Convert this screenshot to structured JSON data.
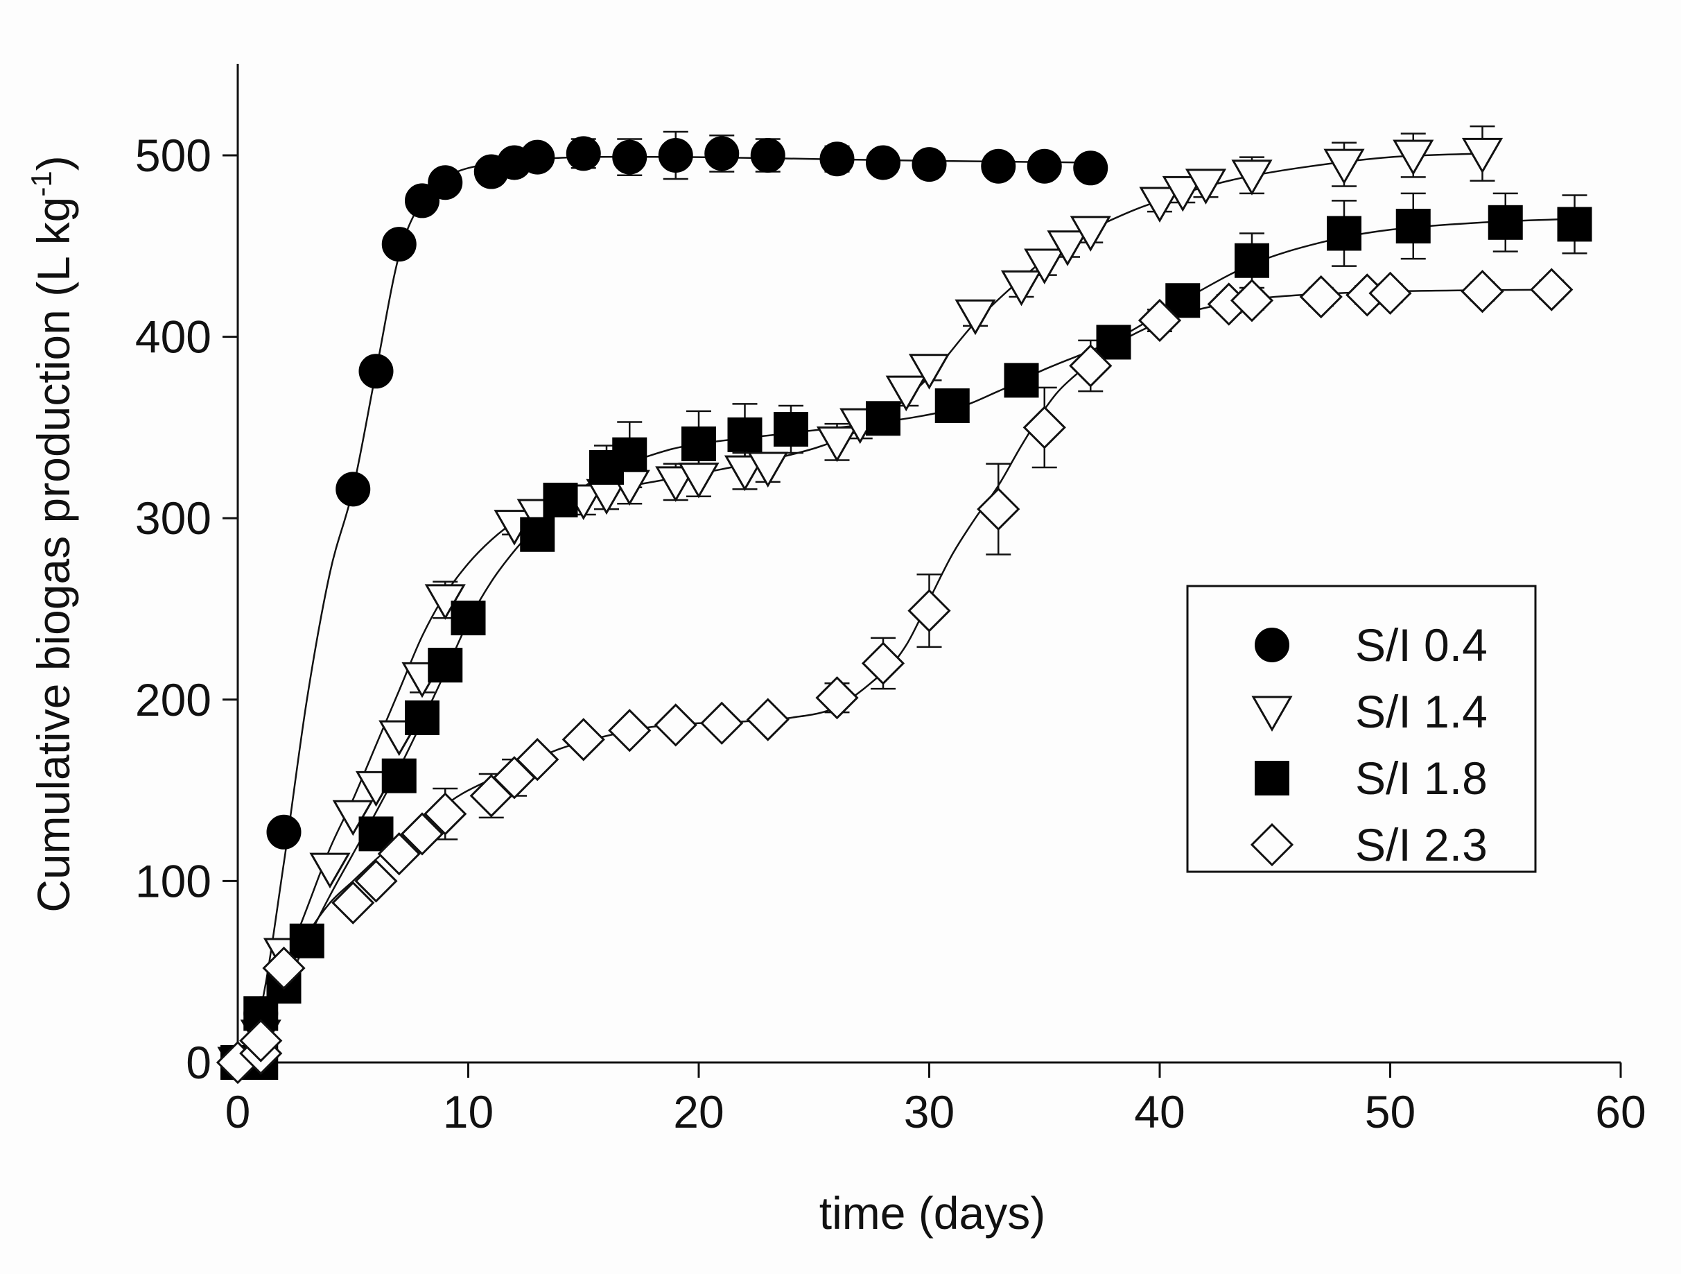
{
  "chart_data": {
    "type": "scatter",
    "title": "",
    "xlabel": "time (days)",
    "ylabel_main": "Cumulative biogas production (L kg",
    "ylabel_sup": "-1",
    "ylabel_close": ")",
    "xlim": [
      0,
      60
    ],
    "ylim": [
      0,
      550
    ],
    "xticks": [
      0,
      10,
      20,
      30,
      40,
      50,
      60
    ],
    "yticks": [
      0,
      100,
      200,
      300,
      400,
      500
    ],
    "grid": false,
    "legend_position": "center-right",
    "series": [
      {
        "name": "S/I 0.4",
        "marker": "filled-circle",
        "points": [
          {
            "x": 0,
            "y": 0,
            "err": 0
          },
          {
            "x": 1,
            "y": 27,
            "err": 0
          },
          {
            "x": 2,
            "y": 127,
            "err": 0
          },
          {
            "x": 5,
            "y": 316,
            "err": 0
          },
          {
            "x": 6,
            "y": 381,
            "err": 0
          },
          {
            "x": 7,
            "y": 451,
            "err": 0
          },
          {
            "x": 8,
            "y": 475,
            "err": 0
          },
          {
            "x": 9,
            "y": 485,
            "err": 0
          },
          {
            "x": 11,
            "y": 491,
            "err": 5
          },
          {
            "x": 12,
            "y": 496,
            "err": 5
          },
          {
            "x": 13,
            "y": 499,
            "err": 5
          },
          {
            "x": 15,
            "y": 501,
            "err": 8
          },
          {
            "x": 17,
            "y": 499,
            "err": 10
          },
          {
            "x": 19,
            "y": 500,
            "err": 13
          },
          {
            "x": 21,
            "y": 501,
            "err": 10
          },
          {
            "x": 23,
            "y": 500,
            "err": 9
          },
          {
            "x": 26,
            "y": 498,
            "err": 7
          },
          {
            "x": 28,
            "y": 496,
            "err": 6
          },
          {
            "x": 30,
            "y": 495,
            "err": 5
          },
          {
            "x": 33,
            "y": 494,
            "err": 5
          },
          {
            "x": 35,
            "y": 494,
            "err": 5
          },
          {
            "x": 37,
            "y": 493,
            "err": 6
          }
        ],
        "fit": [
          [
            0,
            0
          ],
          [
            1,
            30
          ],
          [
            2,
            110
          ],
          [
            3,
            200
          ],
          [
            4,
            270
          ],
          [
            5,
            316
          ],
          [
            6,
            381
          ],
          [
            7,
            445
          ],
          [
            8,
            475
          ],
          [
            9,
            487
          ],
          [
            10,
            493
          ],
          [
            12,
            497
          ],
          [
            15,
            499
          ],
          [
            20,
            499
          ],
          [
            25,
            498
          ],
          [
            30,
            497
          ],
          [
            37,
            496
          ]
        ]
      },
      {
        "name": "S/I 1.4",
        "marker": "open-triangle-down",
        "points": [
          {
            "x": 0,
            "y": 0,
            "err": 0
          },
          {
            "x": 1,
            "y": 15,
            "err": 0
          },
          {
            "x": 2,
            "y": 60,
            "err": 0
          },
          {
            "x": 4,
            "y": 107,
            "err": 0
          },
          {
            "x": 5,
            "y": 136,
            "err": 0
          },
          {
            "x": 6,
            "y": 152,
            "err": 0
          },
          {
            "x": 7,
            "y": 180,
            "err": 0
          },
          {
            "x": 8,
            "y": 212,
            "err": 8
          },
          {
            "x": 9,
            "y": 255,
            "err": 10
          },
          {
            "x": 12,
            "y": 296,
            "err": 5
          },
          {
            "x": 13,
            "y": 302,
            "err": 7
          },
          {
            "x": 15,
            "y": 310,
            "err": 8
          },
          {
            "x": 16,
            "y": 313,
            "err": 8
          },
          {
            "x": 17,
            "y": 318,
            "err": 10
          },
          {
            "x": 19,
            "y": 320,
            "err": 10
          },
          {
            "x": 20,
            "y": 322,
            "err": 10
          },
          {
            "x": 22,
            "y": 326,
            "err": 10
          },
          {
            "x": 23,
            "y": 328,
            "err": 8
          },
          {
            "x": 26,
            "y": 342,
            "err": 10
          },
          {
            "x": 27,
            "y": 352,
            "err": 8
          },
          {
            "x": 29,
            "y": 370,
            "err": 8
          },
          {
            "x": 30,
            "y": 382,
            "err": 6
          },
          {
            "x": 32,
            "y": 412,
            "err": 6
          },
          {
            "x": 34,
            "y": 428,
            "err": 6
          },
          {
            "x": 35,
            "y": 440,
            "err": 6
          },
          {
            "x": 36,
            "y": 450,
            "err": 6
          },
          {
            "x": 37,
            "y": 458,
            "err": 6
          },
          {
            "x": 40,
            "y": 474,
            "err": 5
          },
          {
            "x": 41,
            "y": 480,
            "err": 6
          },
          {
            "x": 42,
            "y": 484,
            "err": 7
          },
          {
            "x": 44,
            "y": 489,
            "err": 10
          },
          {
            "x": 48,
            "y": 495,
            "err": 12
          },
          {
            "x": 51,
            "y": 500,
            "err": 12
          },
          {
            "x": 54,
            "y": 501,
            "err": 15
          }
        ],
        "fit": [
          [
            0,
            0
          ],
          [
            1,
            20
          ],
          [
            2,
            52
          ],
          [
            3,
            85
          ],
          [
            4,
            118
          ],
          [
            5,
            145
          ],
          [
            6,
            175
          ],
          [
            7,
            205
          ],
          [
            8,
            235
          ],
          [
            9,
            258
          ],
          [
            10,
            275
          ],
          [
            11,
            288
          ],
          [
            12,
            298
          ],
          [
            13,
            305
          ],
          [
            15,
            313
          ],
          [
            18,
            320
          ],
          [
            21,
            327
          ],
          [
            24,
            335
          ],
          [
            26,
            343
          ],
          [
            28,
            356
          ],
          [
            30,
            378
          ],
          [
            32,
            408
          ],
          [
            34,
            432
          ],
          [
            36,
            452
          ],
          [
            38,
            465
          ],
          [
            40,
            475
          ],
          [
            43,
            486
          ],
          [
            46,
            493
          ],
          [
            50,
            499
          ],
          [
            54,
            501
          ]
        ]
      },
      {
        "name": "S/I 1.8",
        "marker": "filled-square",
        "points": [
          {
            "x": 0,
            "y": 0,
            "err": 0
          },
          {
            "x": 1,
            "y": 0,
            "err": 0
          },
          {
            "x": 1,
            "y": 27,
            "err": 0
          },
          {
            "x": 2,
            "y": 42,
            "err": 0
          },
          {
            "x": 3,
            "y": 67,
            "err": 0
          },
          {
            "x": 6,
            "y": 126,
            "err": 0
          },
          {
            "x": 7,
            "y": 158,
            "err": 0
          },
          {
            "x": 8,
            "y": 190,
            "err": 0
          },
          {
            "x": 9,
            "y": 219,
            "err": 0
          },
          {
            "x": 10,
            "y": 245,
            "err": 0
          },
          {
            "x": 13,
            "y": 291,
            "err": 0
          },
          {
            "x": 14,
            "y": 310,
            "err": 5
          },
          {
            "x": 16,
            "y": 328,
            "err": 12
          },
          {
            "x": 17,
            "y": 335,
            "err": 18
          },
          {
            "x": 20,
            "y": 341,
            "err": 18
          },
          {
            "x": 22,
            "y": 346,
            "err": 17
          },
          {
            "x": 24,
            "y": 349,
            "err": 13
          },
          {
            "x": 28,
            "y": 355,
            "err": 5
          },
          {
            "x": 31,
            "y": 362,
            "err": 5
          },
          {
            "x": 34,
            "y": 376,
            "err": 5
          },
          {
            "x": 38,
            "y": 397,
            "err": 6
          },
          {
            "x": 41,
            "y": 420,
            "err": 8
          },
          {
            "x": 44,
            "y": 442,
            "err": 15
          },
          {
            "x": 48,
            "y": 457,
            "err": 18
          },
          {
            "x": 51,
            "y": 461,
            "err": 18
          },
          {
            "x": 55,
            "y": 463,
            "err": 16
          },
          {
            "x": 58,
            "y": 462,
            "err": 16
          }
        ],
        "fit": [
          [
            0,
            0
          ],
          [
            1,
            18
          ],
          [
            2,
            40
          ],
          [
            3,
            67
          ],
          [
            4,
            92
          ],
          [
            5,
            115
          ],
          [
            6,
            138
          ],
          [
            7,
            162
          ],
          [
            8,
            188
          ],
          [
            9,
            215
          ],
          [
            10,
            243
          ],
          [
            11,
            265
          ],
          [
            12,
            282
          ],
          [
            13,
            296
          ],
          [
            14,
            308
          ],
          [
            16,
            325
          ],
          [
            18,
            335
          ],
          [
            20,
            341
          ],
          [
            24,
            347
          ],
          [
            28,
            353
          ],
          [
            31,
            360
          ],
          [
            33,
            370
          ],
          [
            35,
            382
          ],
          [
            38,
            398
          ],
          [
            41,
            420
          ],
          [
            44,
            440
          ],
          [
            47,
            452
          ],
          [
            50,
            459
          ],
          [
            54,
            463
          ],
          [
            58,
            465
          ]
        ]
      },
      {
        "name": "S/I 2.3",
        "marker": "open-diamond",
        "points": [
          {
            "x": 0,
            "y": 0,
            "err": 0
          },
          {
            "x": 1,
            "y": 5,
            "err": 0
          },
          {
            "x": 1,
            "y": 12,
            "err": 0
          },
          {
            "x": 2,
            "y": 52,
            "err": 0
          },
          {
            "x": 5,
            "y": 88,
            "err": 0
          },
          {
            "x": 6,
            "y": 100,
            "err": 0
          },
          {
            "x": 7,
            "y": 115,
            "err": 0
          },
          {
            "x": 8,
            "y": 126,
            "err": 0
          },
          {
            "x": 9,
            "y": 137,
            "err": 14
          },
          {
            "x": 11,
            "y": 147,
            "err": 12
          },
          {
            "x": 12,
            "y": 157,
            "err": 10
          },
          {
            "x": 13,
            "y": 167,
            "err": 0
          },
          {
            "x": 15,
            "y": 178,
            "err": 0
          },
          {
            "x": 17,
            "y": 183,
            "err": 0
          },
          {
            "x": 19,
            "y": 186,
            "err": 0
          },
          {
            "x": 21,
            "y": 187,
            "err": 0
          },
          {
            "x": 23,
            "y": 189,
            "err": 0
          },
          {
            "x": 26,
            "y": 201,
            "err": 8
          },
          {
            "x": 28,
            "y": 220,
            "err": 14
          },
          {
            "x": 30,
            "y": 249,
            "err": 20
          },
          {
            "x": 33,
            "y": 305,
            "err": 25
          },
          {
            "x": 35,
            "y": 350,
            "err": 22
          },
          {
            "x": 37,
            "y": 384,
            "err": 14
          },
          {
            "x": 40,
            "y": 409,
            "err": 6
          },
          {
            "x": 43,
            "y": 418,
            "err": 5
          },
          {
            "x": 44,
            "y": 420,
            "err": 5
          },
          {
            "x": 47,
            "y": 422,
            "err": 5
          },
          {
            "x": 49,
            "y": 423,
            "err": 5
          },
          {
            "x": 50,
            "y": 424,
            "err": 5
          },
          {
            "x": 54,
            "y": 425,
            "err": 5
          },
          {
            "x": 57,
            "y": 426,
            "err": 5
          }
        ],
        "fit": [
          [
            0,
            0
          ],
          [
            1,
            15
          ],
          [
            2,
            45
          ],
          [
            3,
            70
          ],
          [
            4,
            88
          ],
          [
            5,
            100
          ],
          [
            6,
            112
          ],
          [
            7,
            123
          ],
          [
            8,
            133
          ],
          [
            9,
            142
          ],
          [
            10,
            150
          ],
          [
            12,
            162
          ],
          [
            14,
            173
          ],
          [
            16,
            180
          ],
          [
            18,
            185
          ],
          [
            20,
            187
          ],
          [
            22,
            188
          ],
          [
            24,
            190
          ],
          [
            26,
            196
          ],
          [
            28,
            215
          ],
          [
            29,
            230
          ],
          [
            30,
            255
          ],
          [
            31,
            280
          ],
          [
            32,
            300
          ],
          [
            33,
            318
          ],
          [
            34,
            340
          ],
          [
            35,
            360
          ],
          [
            36,
            375
          ],
          [
            38,
            395
          ],
          [
            40,
            408
          ],
          [
            42,
            416
          ],
          [
            45,
            422
          ],
          [
            50,
            425
          ],
          [
            57,
            426
          ]
        ]
      }
    ]
  }
}
